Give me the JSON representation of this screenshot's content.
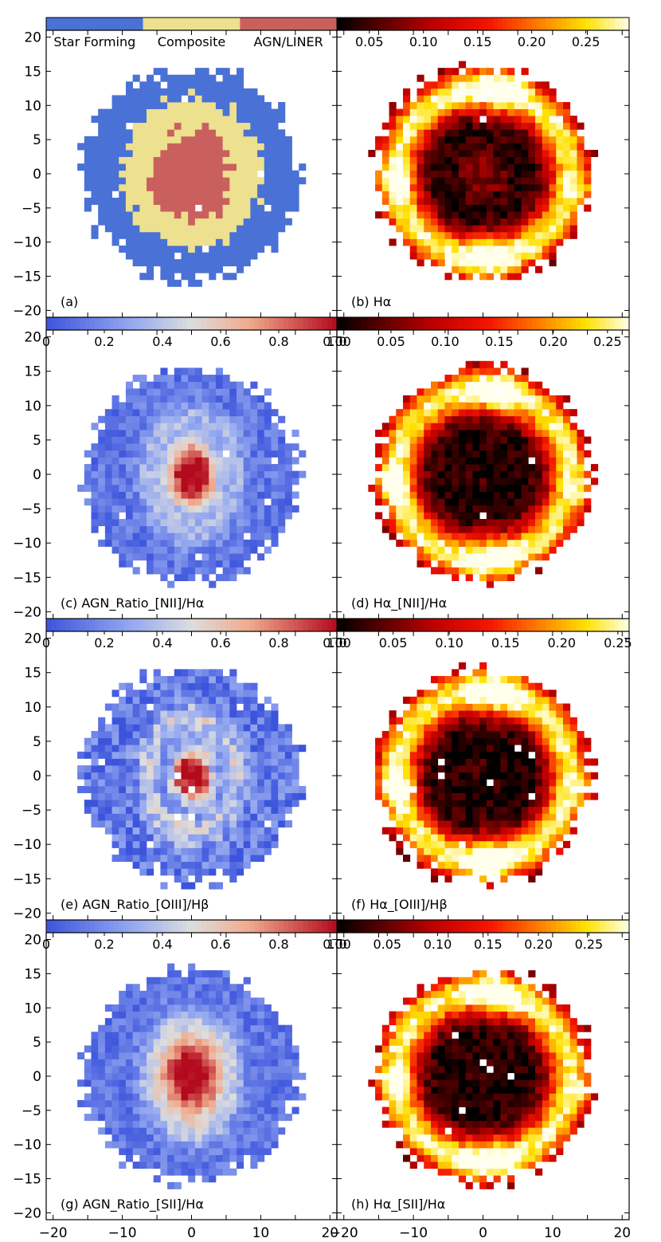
{
  "chart_data": {
    "type": "heatmap",
    "layout": "4 rows x 2 columns of spatial maps, shared x/y axes",
    "xlim": [
      -21,
      21
    ],
    "ylim": [
      -21,
      21
    ],
    "ticks": [
      -20,
      -15,
      -10,
      -5,
      0,
      5,
      10,
      15,
      20
    ],
    "x_tick_labels_left": [
      "−20",
      "−10",
      "0",
      "10",
      "20"
    ],
    "x_tick_labels_right": [
      "−20",
      "−10",
      "0",
      "10",
      "20"
    ],
    "y_tick_labels": [
      "20",
      "15",
      "10",
      "5",
      "0",
      "−5",
      "−10",
      "−15",
      "−20"
    ],
    "map_radius": 15.5,
    "panels": [
      {
        "label": "(a)",
        "quantity": "BPT classification",
        "colorbar": {
          "type": "categorical",
          "categories": [
            "Star Forming",
            "Composite",
            "AGN/LINER"
          ],
          "colors": [
            "#4a71d6",
            "#ede08e",
            "#c9605d"
          ]
        }
      },
      {
        "label": "(b) Hα",
        "quantity": "Hα",
        "colorbar": {
          "type": "continuous",
          "cmap": "hot",
          "range": [
            0.02,
            0.29
          ],
          "tick_labels": [
            "0.05",
            "0.10",
            "0.15",
            "0.20",
            "0.25"
          ]
        }
      },
      {
        "label": "(c) AGN_Ratio_[NII]/Hα",
        "quantity": "AGN ratio from [NII]/Hα",
        "colorbar": {
          "type": "continuous",
          "cmap": "coolwarm",
          "range": [
            0,
            1
          ],
          "tick_labels": [
            "0",
            "0.2",
            "0.4",
            "0.6",
            "0.8",
            "1.0"
          ]
        }
      },
      {
        "label": "(d) Hα_[NII]/Hα",
        "quantity": "Hα from [NII]/Hα",
        "colorbar": {
          "type": "continuous",
          "cmap": "hot",
          "range": [
            0,
            0.27
          ],
          "tick_labels": [
            "0.00",
            "0.05",
            "0.10",
            "0.15",
            "0.20",
            "0.25"
          ]
        }
      },
      {
        "label": "(e) AGN_Ratio_[OIII]/Hβ",
        "quantity": "AGN ratio from [OIII]/Hβ",
        "colorbar": {
          "type": "continuous",
          "cmap": "coolwarm",
          "range": [
            0,
            1
          ],
          "tick_labels": [
            "0",
            "0.2",
            "0.4",
            "0.6",
            "0.8",
            "1.0"
          ]
        }
      },
      {
        "label": "(f) Hα_[OIII]/Hβ",
        "quantity": "Hα from [OIII]/Hβ",
        "colorbar": {
          "type": "continuous",
          "cmap": "hot",
          "range": [
            0,
            0.26
          ],
          "tick_labels": [
            "0.00",
            "0.05",
            "0.10",
            "0.15",
            "0.20",
            "0.25"
          ]
        }
      },
      {
        "label": "(g) AGN_Ratio_[SII]/Hα",
        "quantity": "AGN ratio from [SII]/Hα",
        "colorbar": {
          "type": "continuous",
          "cmap": "coolwarm",
          "range": [
            0,
            1
          ],
          "tick_labels": [
            "0",
            "0.2",
            "0.4",
            "0.6",
            "0.8",
            "1.0"
          ]
        }
      },
      {
        "label": "(h) Hα_[SII]/Hα",
        "quantity": "Hα from [SII]/Hα",
        "colorbar": {
          "type": "continuous",
          "cmap": "hot",
          "range": [
            0,
            0.29
          ],
          "tick_labels": [
            "0.00",
            "0.05",
            "0.10",
            "0.15",
            "0.20",
            "0.25"
          ]
        }
      }
    ]
  }
}
